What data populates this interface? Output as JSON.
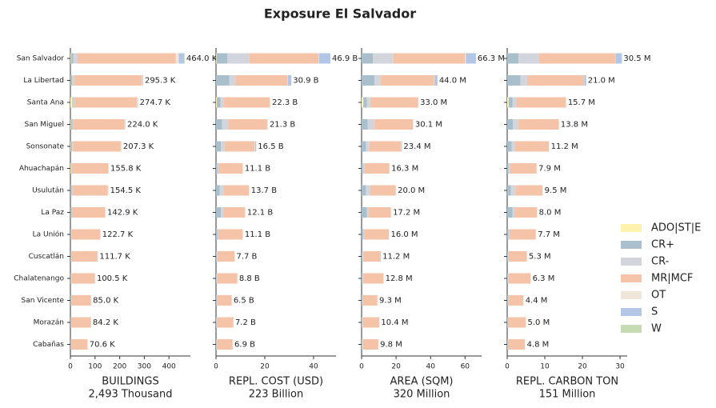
{
  "chart_data": {
    "type": "bar",
    "orientation": "horizontal",
    "title": "Exposure El Salvador",
    "categories": [
      "San Salvador",
      "La Libertad",
      "Santa Ana",
      "San Miguel",
      "Sonsonate",
      "Ahuachapán",
      "Usulután",
      "La Paz",
      "La Unión",
      "Cuscatlán",
      "Chalatenango",
      "San Vicente",
      "Morazán",
      "Cabañas"
    ],
    "series": [
      {
        "name": "ADO|ST|E",
        "color": "#fff2ae"
      },
      {
        "name": "CR+",
        "color": "#a9bfcc"
      },
      {
        "name": "CR-",
        "color": "#d2d5db"
      },
      {
        "name": "MR|MCF",
        "color": "#f5c3a7"
      },
      {
        "name": "OT",
        "color": "#f1e6da"
      },
      {
        "name": "S",
        "color": "#b3c6e6"
      },
      {
        "name": "W",
        "color": "#c6dbb2"
      }
    ],
    "panels": [
      {
        "xlabel": "BUILDINGS",
        "xlabel_sub": "2,493 Thousand",
        "xlim": [
          0,
          487
        ],
        "xticks": [
          0,
          100,
          200,
          300,
          400
        ],
        "series": [
          {
            "values": [
              2,
              1.3,
              8,
              2,
              2,
              3,
              1,
              1,
              1,
              1,
              1,
              0.5,
              0.5,
              0.5
            ]
          },
          {
            "values": [
              10,
              6,
              4,
              6,
              5,
              2,
              4,
              4,
              2,
              2,
              1,
              1.5,
              1,
              1
            ]
          },
          {
            "values": [
              16,
              8,
              6,
              5,
              5,
              3,
              4,
              3,
              2,
              2,
              1.5,
              1.5,
              1,
              1
            ]
          },
          {
            "values": [
              400,
              275,
              252,
              207,
              192,
              145,
              143,
              132.4,
              115.7,
              105.2,
              95.5,
              80,
              80.2,
              66.6
            ]
          },
          {
            "values": [
              12,
              3,
              3,
              3,
              2.3,
              2.3,
              2,
              2,
              1.5,
              1,
              1,
              1,
              1,
              1
            ]
          },
          {
            "values": [
              22,
              2,
              1.7,
              1,
              1,
              0.5,
              0.5,
              0.5,
              0.5,
              0.5,
              0.5,
              0.5,
              0.5,
              0.5
            ]
          },
          {
            "values": [
              2,
              0,
              0,
              0,
              0,
              0,
              0,
              0,
              0,
              0,
              0,
              0,
              0,
              0
            ]
          }
        ],
        "totals": [
          464.0,
          295.3,
          274.7,
          224.0,
          207.3,
          155.8,
          154.5,
          142.9,
          122.7,
          111.7,
          100.5,
          85.0,
          84.2,
          70.6
        ],
        "total_labels": [
          "464.0 K",
          "295.3 K",
          "274.7 K",
          "224.0 K",
          "207.3 K",
          "155.8 K",
          "154.5 K",
          "142.9 K",
          "122.7 K",
          "111.7 K",
          "100.5 K",
          "85.0 K",
          "84.2 K",
          "70.6 K"
        ]
      },
      {
        "xlabel": "REPL. COST (USD)",
        "xlabel_sub": "223 Billion",
        "xlim": [
          0,
          49.2
        ],
        "xticks": [
          0,
          20,
          40
        ],
        "series": [
          {
            "values": [
              0.2,
              0,
              0.3,
              0,
              0,
              0,
              0,
              0,
              0,
              0,
              0,
              0,
              0,
              0
            ]
          },
          {
            "values": [
              4.5,
              5.5,
              1.5,
              2.5,
              2,
              0.5,
              1.5,
              2,
              0.5,
              0.3,
              0.3,
              0.3,
              0.2,
              0.2
            ]
          },
          {
            "values": [
              9,
              2.5,
              1.5,
              2.5,
              1.5,
              0.5,
              1.5,
              1,
              0.5,
              0.3,
              0.3,
              0.2,
              0.2,
              0.2
            ]
          },
          {
            "values": [
              28.3,
              21.2,
              18.7,
              16,
              12.3,
              9.9,
              10.5,
              8.9,
              9.9,
              7,
              8.1,
              5.9,
              6.7,
              6.4
            ]
          },
          {
            "values": [
              0.2,
              0.2,
              0.3,
              0.3,
              0.2,
              0.2,
              0.2,
              0.2,
              0.2,
              0.1,
              0.1,
              0.1,
              0.1,
              0.1
            ]
          },
          {
            "values": [
              4.7,
              1.5,
              0,
              0,
              0.5,
              0,
              0,
              0,
              0,
              0,
              0,
              0,
              0,
              0
            ]
          },
          {
            "values": [
              0,
              0,
              0,
              0,
              0,
              0,
              0,
              0,
              0,
              0,
              0,
              0,
              0,
              0
            ]
          }
        ],
        "totals": [
          46.9,
          30.9,
          22.3,
          21.3,
          16.5,
          11.1,
          13.7,
          12.1,
          11.1,
          7.7,
          8.8,
          6.5,
          7.2,
          6.9
        ],
        "total_labels": [
          "46.9 B",
          "30.9 B",
          "22.3 B",
          "21.3 B",
          "16.5 B",
          "11.1 B",
          "13.7 B",
          "12.1 B",
          "11.1 B",
          "7.7 B",
          "8.8 B",
          "6.5 B",
          "7.2 B",
          "6.9 B"
        ]
      },
      {
        "xlabel": "AREA (SQM)",
        "xlabel_sub": "320 Million",
        "xlim": [
          0,
          69.6
        ],
        "xticks": [
          0,
          20,
          40,
          60
        ],
        "series": [
          {
            "values": [
              0,
              0,
              1,
              0,
              0,
              0,
              0,
              0,
              0,
              0,
              0,
              0,
              0,
              0
            ]
          },
          {
            "values": [
              6.5,
              7.5,
              2,
              3.5,
              2.5,
              0.7,
              2.5,
              3,
              1,
              0.5,
              0.5,
              0.4,
              0.3,
              0.3
            ]
          },
          {
            "values": [
              12,
              3.5,
              2,
              4,
              2,
              1,
              2.5,
              1,
              0.5,
              0.5,
              0.5,
              0.3,
              0.3,
              0.3
            ]
          },
          {
            "values": [
              41.5,
              31,
              27.7,
              22.3,
              18.2,
              14.4,
              14.8,
              13,
              14.3,
              10.1,
              11.7,
              8.5,
              9.7,
              9.1
            ]
          },
          {
            "values": [
              0.5,
              0.3,
              0.3,
              0.3,
              0.2,
              0.2,
              0.2,
              0.2,
              0.2,
              0.1,
              0.1,
              0.1,
              0.1,
              0.1
            ]
          },
          {
            "values": [
              5.8,
              1.7,
              0,
              0,
              0.5,
              0,
              0,
              0,
              0,
              0,
              0,
              0,
              0,
              0
            ]
          },
          {
            "values": [
              0,
              0,
              0,
              0,
              0,
              0,
              0,
              0,
              0,
              0,
              0,
              0,
              0,
              0
            ]
          }
        ],
        "totals": [
          66.3,
          44.0,
          33.0,
          30.1,
          23.4,
          16.3,
          20.0,
          17.2,
          16.0,
          11.2,
          12.8,
          9.3,
          10.4,
          9.8
        ],
        "total_labels": [
          "66.3 M",
          "44.0 M",
          "33.0 M",
          "30.1 M",
          "23.4 M",
          "16.3 M",
          "20.0 M",
          "17.2 M",
          "16.0 M",
          "11.2 M",
          "12.8 M",
          "9.3 M",
          "10.4 M",
          "9.8 M"
        ]
      },
      {
        "xlabel": "REPL. CARBON TON",
        "xlabel_sub": "151 Million",
        "xlim": [
          0,
          31.9
        ],
        "xticks": [
          0,
          10,
          20,
          30
        ],
        "series": [
          {
            "values": [
              0,
              0,
              0.4,
              0,
              0,
              0,
              0,
              0,
              0,
              0,
              0,
              0,
              0,
              0
            ]
          },
          {
            "values": [
              3,
              3.5,
              1,
              1.5,
              1.2,
              0.3,
              1,
              1.4,
              0.3,
              0.2,
              0.2,
              0.2,
              0.1,
              0.1
            ]
          },
          {
            "values": [
              5.5,
              1.8,
              1,
              1.5,
              0.8,
              0.4,
              1.2,
              0.5,
              0.3,
              0.2,
              0.2,
              0.1,
              0.1,
              0.1
            ]
          },
          {
            "values": [
              20.2,
              15.1,
              13.2,
              10.7,
              9.1,
              7.1,
              7.2,
              6,
              7,
              4.8,
              5.8,
              4.0,
              4.7,
              4.5
            ]
          },
          {
            "values": [
              0.1,
              0.1,
              0.1,
              0.1,
              0.1,
              0.1,
              0.1,
              0.1,
              0.1,
              0.1,
              0.1,
              0.1,
              0.1,
              0.1
            ]
          },
          {
            "values": [
              1.7,
              0.5,
              0,
              0,
              0,
              0,
              0,
              0,
              0,
              0,
              0,
              0,
              0,
              0
            ]
          },
          {
            "values": [
              0,
              0,
              0,
              0,
              0,
              0,
              0,
              0,
              0,
              0,
              0,
              0,
              0,
              0
            ]
          }
        ],
        "totals": [
          30.5,
          21.0,
          15.7,
          13.8,
          11.2,
          7.9,
          9.5,
          8.0,
          7.7,
          5.3,
          6.3,
          4.4,
          5.0,
          4.8
        ],
        "total_labels": [
          "30.5 M",
          "21.0 M",
          "15.7 M",
          "13.8 M",
          "11.2 M",
          "7.9 M",
          "9.5 M",
          "8.0 M",
          "7.7 M",
          "5.3 M",
          "6.3 M",
          "4.4 M",
          "5.0 M",
          "4.8 M"
        ]
      }
    ]
  }
}
